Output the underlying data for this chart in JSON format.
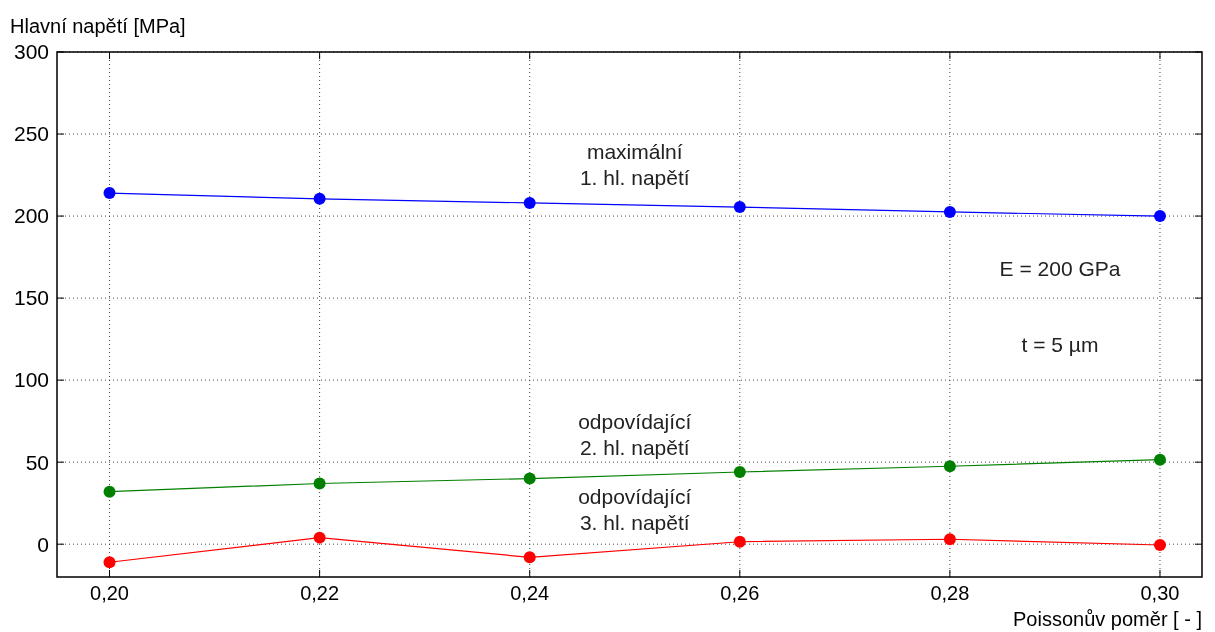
{
  "chart_data": {
    "type": "line",
    "ylabel": "Hlavní napětí [MPa]",
    "xlabel": "Poissonův poměr [ - ]",
    "x": [
      0.2,
      0.22,
      0.24,
      0.26,
      0.28,
      0.3
    ],
    "series": [
      {
        "name": "maximální\n1. hl. napětí",
        "color": "#0000ff",
        "values": [
          214,
          210.5,
          208,
          205.5,
          202.5,
          200
        ]
      },
      {
        "name": "odpovídající\n2. hl. napětí",
        "color": "#008000",
        "values": [
          32,
          37,
          40,
          44,
          47.5,
          51.5
        ]
      },
      {
        "name": "odpovídající\n3. hl. napětí",
        "color": "#ff0000",
        "values": [
          -11,
          4,
          -8,
          1.5,
          3,
          -0.5
        ]
      }
    ],
    "annotations": [
      "E = 200 GPa",
      "t = 5 µm"
    ],
    "xlim": [
      0.195,
      0.304
    ],
    "ylim": [
      -20,
      300
    ],
    "xticks": [
      {
        "value": 0.2,
        "label": "0,20"
      },
      {
        "value": 0.22,
        "label": "0,22"
      },
      {
        "value": 0.24,
        "label": "0,24"
      },
      {
        "value": 0.26,
        "label": "0,26"
      },
      {
        "value": 0.28,
        "label": "0,28"
      },
      {
        "value": 0.3,
        "label": "0,30"
      }
    ],
    "yticks": [
      0,
      50,
      100,
      150,
      200,
      250,
      300
    ],
    "grid": true,
    "marker": "circle",
    "line_style": "solid"
  }
}
